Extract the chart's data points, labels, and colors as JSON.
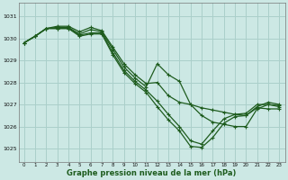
{
  "title": "Graphe pression niveau de la mer (hPa)",
  "bg_color": "#cce8e4",
  "grid_color": "#aacfca",
  "line_color": "#1e5c1e",
  "xlim": [
    -0.5,
    23.5
  ],
  "ylim": [
    1024.4,
    1031.6
  ],
  "yticks": [
    1025,
    1026,
    1027,
    1028,
    1029,
    1030,
    1031
  ],
  "xticks": [
    0,
    1,
    2,
    3,
    4,
    5,
    6,
    7,
    8,
    9,
    10,
    11,
    12,
    13,
    14,
    15,
    16,
    17,
    18,
    19,
    20,
    21,
    22,
    23
  ],
  "series": [
    [
      1029.8,
      1030.1,
      1030.45,
      1030.55,
      1030.55,
      1030.3,
      1030.5,
      1030.35,
      1029.6,
      1028.85,
      1028.35,
      1027.95,
      1028.0,
      1027.4,
      1027.1,
      1027.0,
      1026.85,
      1026.75,
      1026.65,
      1026.55,
      1026.5,
      1026.9,
      1027.1,
      1027.0
    ],
    [
      1029.8,
      1030.1,
      1030.45,
      1030.5,
      1030.5,
      1030.2,
      1030.4,
      1030.3,
      1029.5,
      1028.7,
      1028.2,
      1027.8,
      1028.85,
      1028.35,
      1028.05,
      1027.0,
      1026.5,
      1026.2,
      1026.1,
      1026.0,
      1026.0,
      1026.8,
      1027.0,
      1026.9
    ],
    [
      1029.8,
      1030.1,
      1030.45,
      1030.45,
      1030.45,
      1030.15,
      1030.25,
      1030.25,
      1029.35,
      1028.55,
      1028.05,
      1027.65,
      1027.15,
      1026.55,
      1026.0,
      1025.35,
      1025.2,
      1025.8,
      1026.35,
      1026.55,
      1026.6,
      1027.0,
      1027.0,
      1026.95
    ],
    [
      1029.8,
      1030.1,
      1030.45,
      1030.45,
      1030.45,
      1030.1,
      1030.2,
      1030.2,
      1029.25,
      1028.45,
      1027.95,
      1027.55,
      1026.9,
      1026.3,
      1025.8,
      1025.1,
      1025.05,
      1025.5,
      1026.15,
      1026.45,
      1026.5,
      1026.85,
      1026.8,
      1026.8
    ]
  ]
}
